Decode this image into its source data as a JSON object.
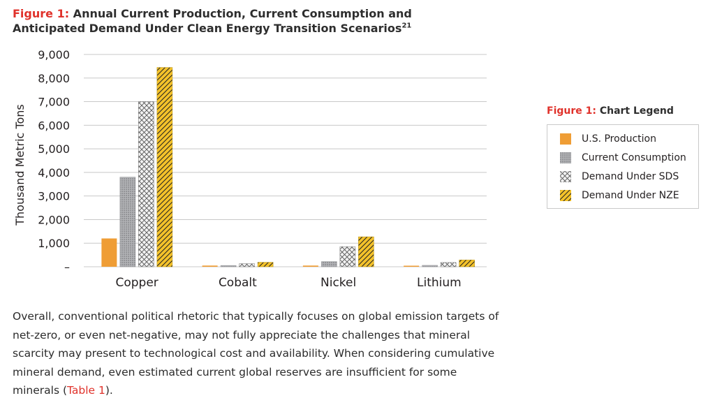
{
  "figure": {
    "label": "Figure 1:",
    "title_line1": " Annual Current Production, Current Consumption and",
    "title_line2": "Anticipated Demand Under Clean Energy Transition Scenarios",
    "footnote": "21"
  },
  "legend": {
    "label": "Figure 1:",
    "title": " Chart Legend"
  },
  "colors": {
    "us_production": "#ef9d35",
    "current_consumption": "#a7a8ab",
    "demand_sds": "#f1f1f1",
    "demand_nze": "#f4c22a",
    "accent": "#e0322b",
    "grid": "#c8c8c8"
  },
  "chart_data": {
    "type": "bar",
    "categories": [
      "Copper",
      "Cobalt",
      "Nickel",
      "Lithium"
    ],
    "series": [
      {
        "name": "U.S. Production",
        "values": [
          1200,
          50,
          50,
          5
        ],
        "pattern": "solid"
      },
      {
        "name": "Current Consumption",
        "values": [
          3800,
          55,
          220,
          60
        ],
        "pattern": "dots"
      },
      {
        "name": "Demand Under SDS",
        "values": [
          7000,
          130,
          850,
          180
        ],
        "pattern": "crosshatch"
      },
      {
        "name": "Demand Under NZE",
        "values": [
          8450,
          190,
          1270,
          290
        ],
        "pattern": "diagonal"
      }
    ],
    "ylabel": "Thousand Metric Tons",
    "xlabel": "",
    "ylim": [
      0,
      9000
    ],
    "yticks": [
      0,
      1000,
      2000,
      3000,
      4000,
      5000,
      6000,
      7000,
      8000,
      9000
    ],
    "ytick_labels": [
      "–",
      "1,000",
      "2,000",
      "3,000",
      "4,000",
      "5,000",
      "6,000",
      "7,000",
      "8,000",
      "9,000"
    ],
    "grid": true,
    "legend_position": "right"
  },
  "body": {
    "text": "Overall, conventional political rhetoric that typically focuses on global emission targets of net-zero, or even net-negative, may not fully appreciate the challenges that mineral scarcity may present to technological cost and availability. When considering cumulative mineral demand, even estimated current global reserves are insufficient for some minerals (",
    "link": "Table 1",
    "after": ")."
  }
}
